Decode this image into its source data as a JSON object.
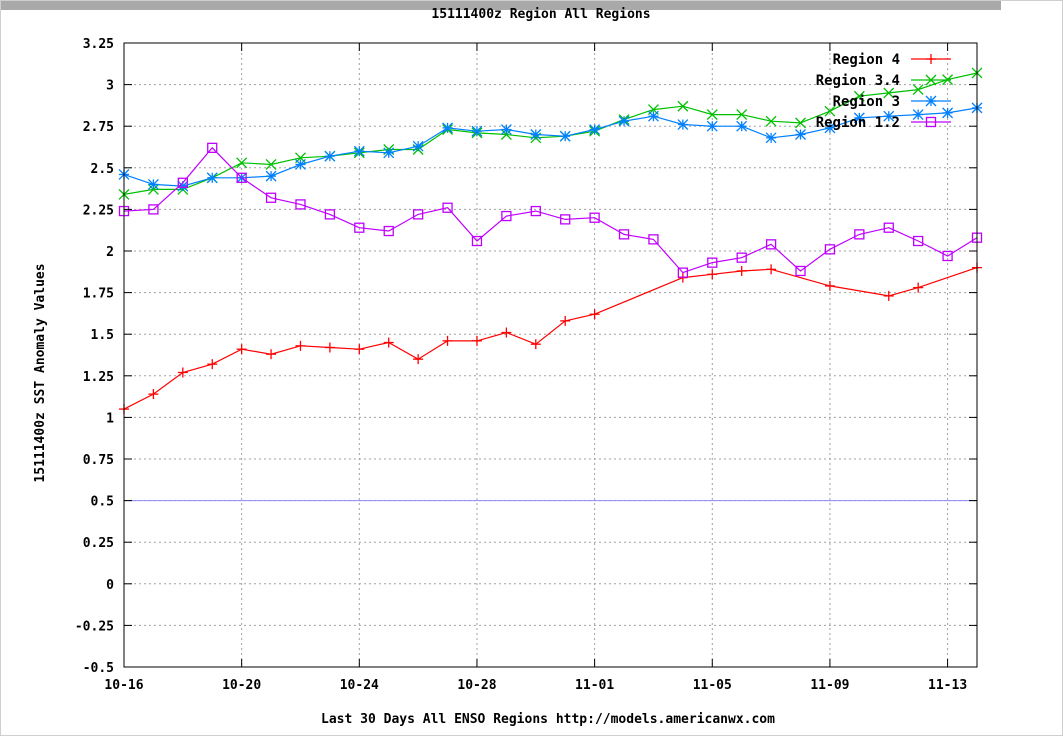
{
  "chart_data": {
    "type": "line",
    "title": "15111400z Region All Regions",
    "xlabel": "Last 30 Days All ENSO Regions http://models.americanwx.com",
    "ylabel": "15111400z SST Anomaly Values",
    "ylim": [
      -0.5,
      3.25
    ],
    "xlim": [
      0,
      29
    ],
    "grid": true,
    "legend_position": "top-right",
    "y_ticks": [
      "-0.5",
      "-0.25",
      "0",
      "0.25",
      "0.5",
      "0.75",
      "1",
      "1.25",
      "1.5",
      "1.75",
      "2",
      "2.25",
      "2.5",
      "2.75",
      "3",
      "3.25"
    ],
    "x_ticks": [
      {
        "x": 0,
        "label": "10-16"
      },
      {
        "x": 4,
        "label": "10-20"
      },
      {
        "x": 8,
        "label": "10-24"
      },
      {
        "x": 12,
        "label": "10-28"
      },
      {
        "x": 16,
        "label": "11-01"
      },
      {
        "x": 20,
        "label": "11-05"
      },
      {
        "x": 24,
        "label": "11-09"
      },
      {
        "x": 28,
        "label": "11-13"
      }
    ],
    "reference_line": {
      "y": 0.5,
      "color": "#8c8cff"
    },
    "series": [
      {
        "name": "Region 4",
        "color": "#ff0000",
        "marker": "plus",
        "x": [
          0,
          1,
          2,
          3,
          4,
          5,
          6,
          7,
          8,
          9,
          10,
          11,
          12,
          13,
          14,
          15,
          16,
          19,
          20,
          21,
          22,
          24,
          26,
          27,
          29
        ],
        "y": [
          1.05,
          1.14,
          1.27,
          1.32,
          1.41,
          1.38,
          1.43,
          1.42,
          1.41,
          1.45,
          1.35,
          1.46,
          1.46,
          1.51,
          1.44,
          1.58,
          1.62,
          1.84,
          1.86,
          1.88,
          1.89,
          1.79,
          1.73,
          1.78,
          1.9
        ]
      },
      {
        "name": "Region 3.4",
        "color": "#00c000",
        "marker": "x",
        "x": [
          0,
          1,
          2,
          3,
          4,
          5,
          6,
          7,
          8,
          9,
          10,
          11,
          12,
          13,
          14,
          15,
          16,
          17,
          18,
          19,
          20,
          21,
          22,
          23,
          24,
          25,
          26,
          27,
          28,
          29
        ],
        "y": [
          2.34,
          2.37,
          2.37,
          2.44,
          2.53,
          2.52,
          2.56,
          2.57,
          2.59,
          2.61,
          2.61,
          2.73,
          2.71,
          2.7,
          2.68,
          2.69,
          2.72,
          2.79,
          2.85,
          2.87,
          2.82,
          2.82,
          2.78,
          2.77,
          2.84,
          2.93,
          2.95,
          2.97,
          3.03,
          3.07
        ]
      },
      {
        "name": "Region 3",
        "color": "#0080ff",
        "marker": "star",
        "x": [
          0,
          1,
          2,
          3,
          4,
          5,
          6,
          7,
          8,
          9,
          10,
          11,
          12,
          13,
          14,
          15,
          16,
          17,
          18,
          19,
          20,
          21,
          22,
          23,
          24,
          25,
          26,
          27,
          28,
          29
        ],
        "y": [
          2.46,
          2.4,
          2.39,
          2.44,
          2.44,
          2.45,
          2.52,
          2.57,
          2.6,
          2.59,
          2.63,
          2.74,
          2.72,
          2.73,
          2.7,
          2.69,
          2.73,
          2.78,
          2.81,
          2.76,
          2.75,
          2.75,
          2.68,
          2.7,
          2.74,
          2.8,
          2.81,
          2.82,
          2.83,
          2.86
        ]
      },
      {
        "name": "Region 1.2",
        "color": "#c000ff",
        "marker": "square",
        "x": [
          0,
          1,
          2,
          3,
          4,
          5,
          6,
          7,
          8,
          9,
          10,
          11,
          12,
          13,
          14,
          15,
          16,
          17,
          18,
          19,
          20,
          21,
          22,
          23,
          24,
          25,
          26,
          27,
          28,
          29
        ],
        "y": [
          2.24,
          2.25,
          2.41,
          2.62,
          2.44,
          2.32,
          2.28,
          2.22,
          2.14,
          2.12,
          2.22,
          2.26,
          2.06,
          2.21,
          2.24,
          2.19,
          2.2,
          2.1,
          2.07,
          1.87,
          1.93,
          1.96,
          2.04,
          1.88,
          2.01,
          2.1,
          2.14,
          2.06,
          1.97,
          2.08
        ]
      }
    ]
  }
}
